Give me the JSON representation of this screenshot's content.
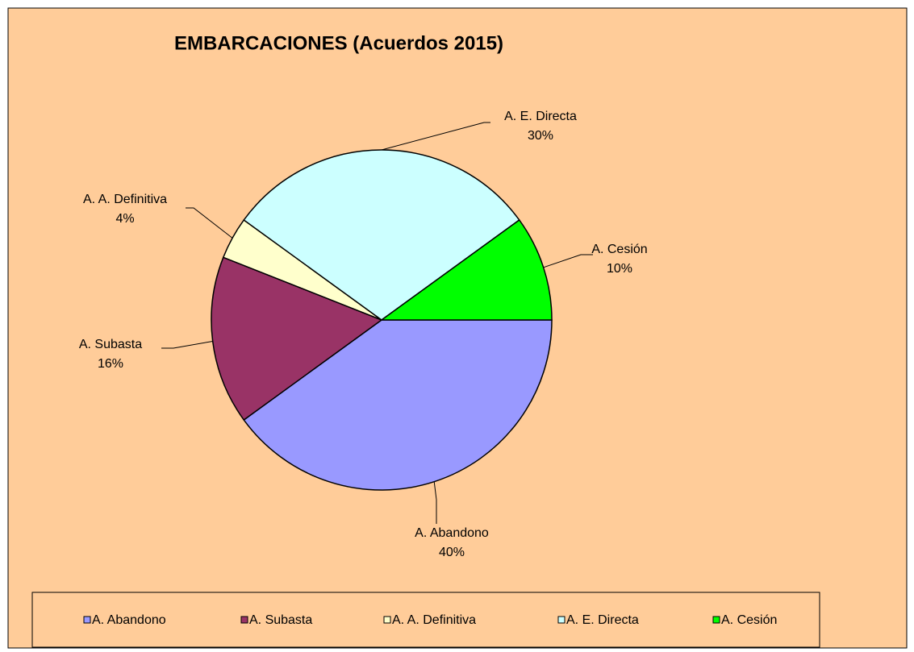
{
  "chart_data": {
    "type": "pie",
    "title": "EMBARCACIONES (Acuerdos 2015)",
    "categories": [
      "A. Abandono",
      "A. Subasta",
      "A. A. Definitiva",
      "A. E. Directa",
      "A. Cesión"
    ],
    "values": [
      40,
      16,
      4,
      30,
      10
    ],
    "value_labels": [
      "40%",
      "16%",
      "4%",
      "30%",
      "10%"
    ],
    "colors": [
      "#9999ff",
      "#993366",
      "#ffffcc",
      "#ccffff",
      "#00ff00"
    ],
    "legend": "bottom"
  }
}
